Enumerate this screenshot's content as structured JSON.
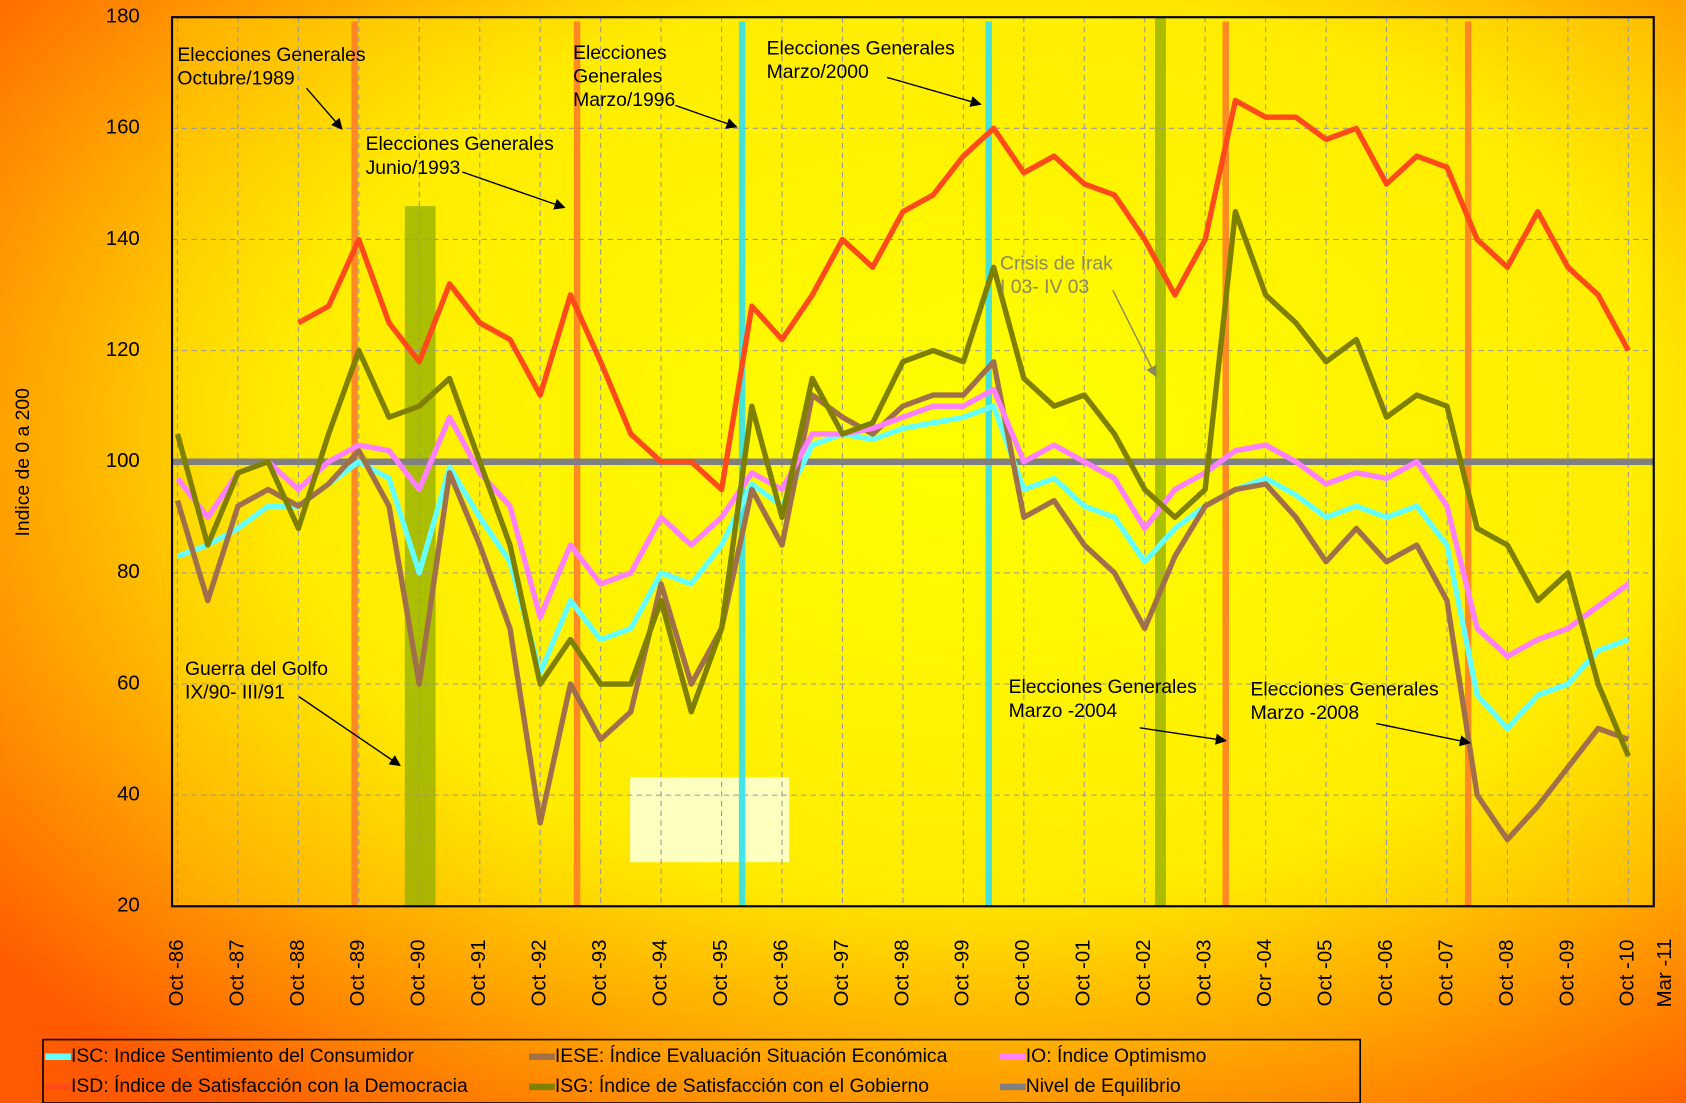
{
  "chart_data": {
    "type": "line",
    "y_label": "Indice de 0 a 200",
    "ylim": [
      20,
      180
    ],
    "yticks": [
      20,
      40,
      60,
      80,
      100,
      120,
      140,
      160,
      180
    ],
    "xlim": [
      1986.66,
      2011.17
    ],
    "xticks": [
      {
        "value": 1986.75,
        "label": "Oct -86"
      },
      {
        "value": 1987.75,
        "label": "Oct -87"
      },
      {
        "value": 1988.75,
        "label": "Oct -88"
      },
      {
        "value": 1989.75,
        "label": "Oct -89"
      },
      {
        "value": 1990.75,
        "label": "Oct -90"
      },
      {
        "value": 1991.75,
        "label": "Oct -91"
      },
      {
        "value": 1992.75,
        "label": "Oct -92"
      },
      {
        "value": 1993.75,
        "label": "Oct -93"
      },
      {
        "value": 1994.75,
        "label": "Oct -94"
      },
      {
        "value": 1995.75,
        "label": "Oct -95"
      },
      {
        "value": 1996.75,
        "label": "Oct -96"
      },
      {
        "value": 1997.75,
        "label": "Oct -97"
      },
      {
        "value": 1998.75,
        "label": "Oct -98"
      },
      {
        "value": 1999.75,
        "label": "Oct -99"
      },
      {
        "value": 2000.75,
        "label": "Oct -00"
      },
      {
        "value": 2001.75,
        "label": "Oct -01"
      },
      {
        "value": 2002.75,
        "label": "Oct -02"
      },
      {
        "value": 2003.75,
        "label": "Oct -03"
      },
      {
        "value": 2004.75,
        "label": "Ocr -04"
      },
      {
        "value": 2005.75,
        "label": "Oct -05"
      },
      {
        "value": 2006.75,
        "label": "Oct -06"
      },
      {
        "value": 2007.75,
        "label": "Oct -07"
      },
      {
        "value": 2008.75,
        "label": "Oct -08"
      },
      {
        "value": 2009.75,
        "label": "Oct -09"
      },
      {
        "value": 2010.75,
        "label": "Oct -10"
      },
      {
        "value": 2011.17,
        "label": "Mar -11"
      }
    ],
    "grid": true,
    "x": [
      1986.75,
      1987.25,
      1987.75,
      1988.25,
      1988.75,
      1989.25,
      1989.75,
      1990.25,
      1990.75,
      1991.25,
      1991.75,
      1992.25,
      1992.75,
      1993.25,
      1993.75,
      1994.25,
      1994.75,
      1995.25,
      1995.75,
      1996.25,
      1996.75,
      1997.25,
      1997.75,
      1998.25,
      1998.75,
      1999.25,
      1999.75,
      2000.25,
      2000.75,
      2001.25,
      2001.75,
      2002.25,
      2002.75,
      2003.25,
      2003.75,
      2004.25,
      2004.75,
      2005.25,
      2005.75,
      2006.25,
      2006.75,
      2007.25,
      2007.75,
      2008.25,
      2008.75,
      2009.25,
      2009.75,
      2010.25,
      2010.75
    ],
    "series": [
      {
        "name": "ISC: Indice Sentimiento del Consumidor",
        "color": "#66ffff",
        "values": [
          83,
          85,
          88,
          92,
          92,
          96,
          100,
          97,
          80,
          99,
          90,
          82,
          62,
          75,
          68,
          70,
          80,
          78,
          85,
          96,
          92,
          103,
          105,
          104,
          106,
          107,
          108,
          110,
          95,
          97,
          92,
          90,
          82,
          88,
          92,
          95,
          97,
          94,
          90,
          92,
          90,
          92,
          85,
          58,
          52,
          58,
          60,
          66,
          68
        ]
      },
      {
        "name": "IESE: Índice Evaluación Situación Económica",
        "color": "#a0704a",
        "values": [
          93,
          75,
          92,
          95,
          92,
          96,
          102,
          92,
          60,
          98,
          85,
          70,
          35,
          60,
          50,
          55,
          78,
          60,
          70,
          95,
          85,
          112,
          108,
          105,
          110,
          112,
          112,
          118,
          90,
          93,
          85,
          80,
          70,
          83,
          92,
          95,
          96,
          90,
          82,
          88,
          82,
          85,
          75,
          40,
          32,
          38,
          45,
          52,
          50
        ]
      },
      {
        "name": "IO: Índice Optimismo",
        "color": "#ff80ff",
        "values": [
          97,
          90,
          98,
          100,
          95,
          100,
          103,
          102,
          95,
          108,
          98,
          92,
          72,
          85,
          78,
          80,
          90,
          85,
          90,
          98,
          95,
          105,
          105,
          106,
          108,
          110,
          110,
          113,
          100,
          103,
          100,
          97,
          88,
          95,
          98,
          102,
          103,
          100,
          96,
          98,
          97,
          100,
          92,
          70,
          65,
          68,
          70,
          74,
          78
        ]
      },
      {
        "name": "ISD: Índice de Satisfacción con la Democracia",
        "color": "#ff4a1a",
        "values": [
          null,
          null,
          null,
          null,
          125,
          128,
          140,
          125,
          118,
          132,
          125,
          122,
          112,
          130,
          118,
          105,
          100,
          100,
          95,
          128,
          122,
          130,
          140,
          135,
          145,
          148,
          155,
          160,
          152,
          155,
          150,
          148,
          140,
          130,
          140,
          165,
          162,
          162,
          158,
          160,
          150,
          155,
          153,
          140,
          135,
          145,
          135,
          130,
          120
        ]
      },
      {
        "name": "ISG: Índice de Satisfacción con el Gobierno",
        "color": "#7f7f00",
        "values": [
          105,
          85,
          98,
          100,
          88,
          105,
          120,
          108,
          110,
          115,
          100,
          85,
          60,
          68,
          60,
          60,
          75,
          55,
          70,
          110,
          90,
          115,
          105,
          107,
          118,
          120,
          118,
          135,
          115,
          110,
          112,
          105,
          95,
          90,
          95,
          145,
          130,
          125,
          118,
          122,
          108,
          112,
          110,
          88,
          85,
          75,
          80,
          60,
          47
        ]
      }
    ],
    "reference_line": {
      "name": "Nivel de Equilibrio",
      "value": 100,
      "color": "#808080"
    },
    "events": [
      {
        "x": 1989.68,
        "color": "#ff7f27"
      },
      {
        "x": 1993.36,
        "color": "#ff7f27"
      },
      {
        "x": 1996.09,
        "color": "#33e0f0"
      },
      {
        "x": 2000.17,
        "color": "#33e0f0"
      },
      {
        "x": 2004.09,
        "color": "#ff7f27"
      },
      {
        "x": 2008.1,
        "color": "#ff7f27"
      }
    ],
    "bands": [
      {
        "from": 1990.51,
        "to": 1991.02,
        "top": 146,
        "color": "#8fae00"
      },
      {
        "from": 2002.92,
        "to": 2003.1,
        "top": 180,
        "color": "#8fae00"
      }
    ],
    "annotations": [
      {
        "lines": [
          "Elecciones Generales",
          "Octubre/1989"
        ]
      },
      {
        "lines": [
          "Elecciones Generales",
          "Junio/1993"
        ]
      },
      {
        "lines": [
          "Elecciones",
          "Generales",
          "Marzo/1996"
        ]
      },
      {
        "lines": [
          "Elecciones Generales",
          "Marzo/2000"
        ]
      },
      {
        "lines": [
          "Crisis de Irak",
          "I 03- IV 03"
        ],
        "color": "#8a8a5a"
      },
      {
        "lines": [
          "Guerra del Golfo",
          "IX/90- III/91"
        ]
      },
      {
        "lines": [
          "Elecciones Generales",
          "Marzo -2004"
        ]
      },
      {
        "lines": [
          "Elecciones Generales",
          "Marzo -2008"
        ]
      }
    ]
  }
}
